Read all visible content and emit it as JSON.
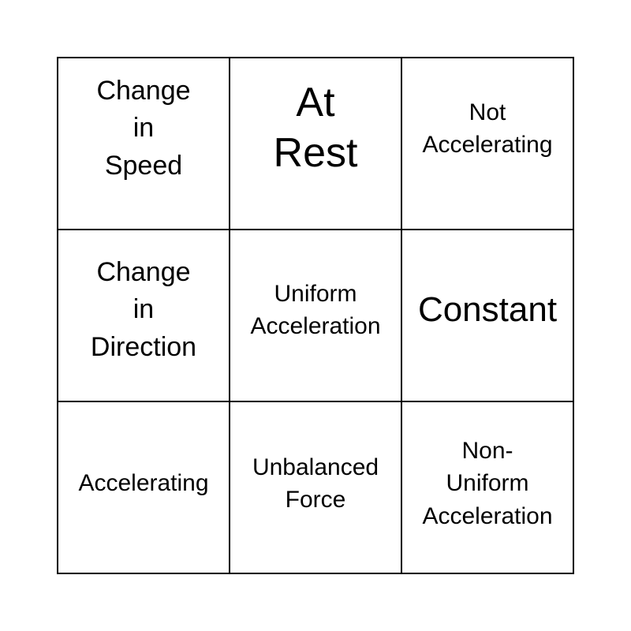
{
  "card": {
    "cells": [
      {
        "text": "Change\nin\nSpeed",
        "size": "l"
      },
      {
        "text": "At\nRest",
        "size": "xl"
      },
      {
        "text": "Not\nAccelerating",
        "size": "m"
      },
      {
        "text": "Change\nin\nDirection",
        "size": "l"
      },
      {
        "text": "Uniform\nAcceleration",
        "size": "m"
      },
      {
        "text": "Constant",
        "size": "xl2"
      },
      {
        "text": "Accelerating",
        "size": "m"
      },
      {
        "text": "Unbalanced\nForce",
        "size": "m"
      },
      {
        "text": "Non-\nUniform\nAcceleration",
        "size": "m"
      }
    ]
  }
}
